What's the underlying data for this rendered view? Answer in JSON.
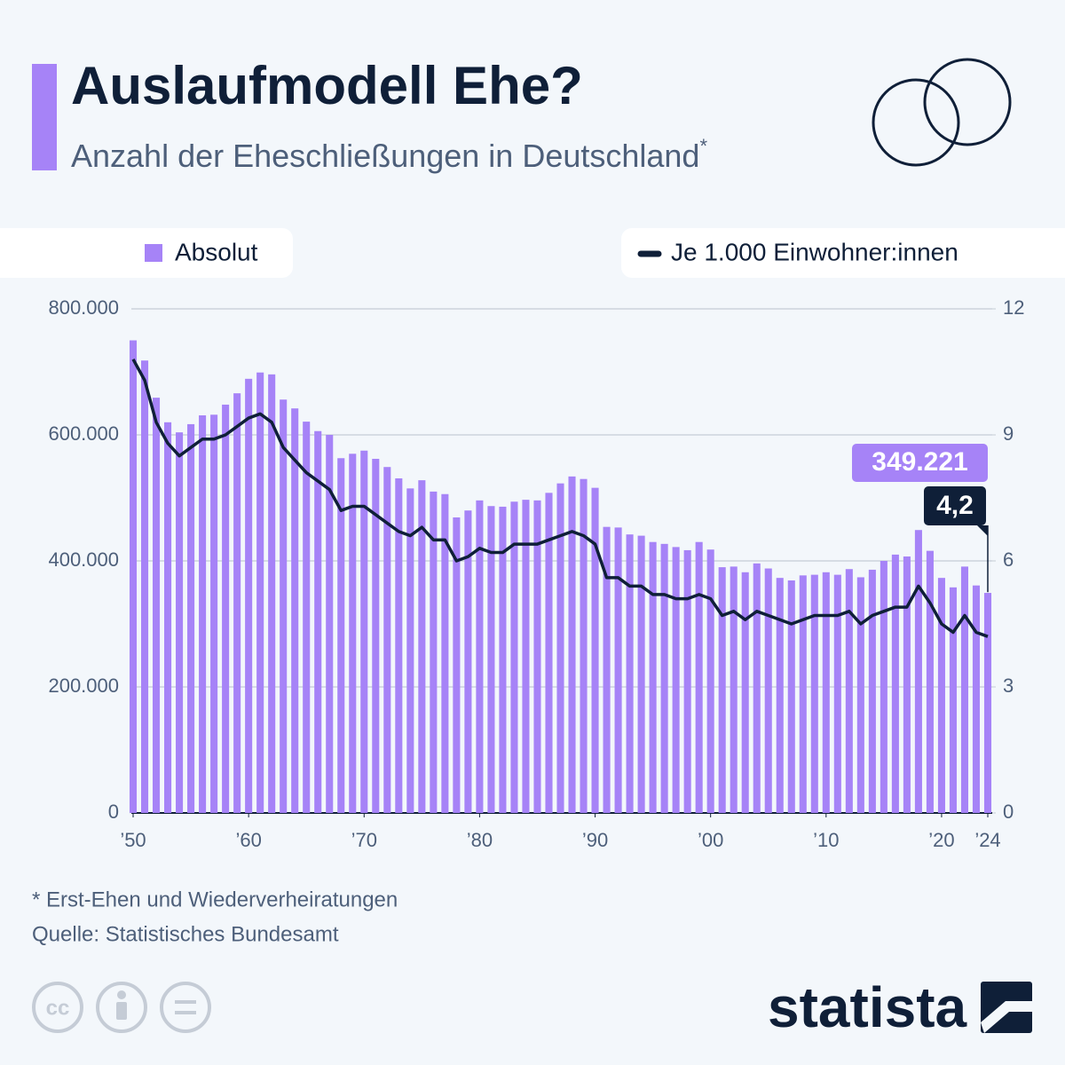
{
  "header": {
    "title": "Auslaufmodell Ehe?",
    "subtitle": "Anzahl der Eheschließungen in Deutschland",
    "subtitle_note": "*"
  },
  "chart_data": {
    "type": "bar",
    "x": [
      1950,
      1951,
      1952,
      1953,
      1954,
      1955,
      1956,
      1957,
      1958,
      1959,
      1960,
      1961,
      1962,
      1963,
      1964,
      1965,
      1966,
      1967,
      1968,
      1969,
      1970,
      1971,
      1972,
      1973,
      1974,
      1975,
      1976,
      1977,
      1978,
      1979,
      1980,
      1981,
      1982,
      1983,
      1984,
      1985,
      1986,
      1987,
      1988,
      1989,
      1990,
      1991,
      1992,
      1993,
      1994,
      1995,
      1996,
      1997,
      1998,
      1999,
      2000,
      2001,
      2002,
      2003,
      2004,
      2005,
      2006,
      2007,
      2008,
      2009,
      2010,
      2011,
      2012,
      2013,
      2014,
      2015,
      2016,
      2017,
      2018,
      2019,
      2020,
      2021,
      2022,
      2023,
      2024
    ],
    "xlim": [
      1949.5,
      2024.5
    ],
    "xticks": [
      {
        "value": 1950,
        "label": "’50"
      },
      {
        "value": 1960,
        "label": "’60"
      },
      {
        "value": 1970,
        "label": "’70"
      },
      {
        "value": 1980,
        "label": "’80"
      },
      {
        "value": 1990,
        "label": "’90"
      },
      {
        "value": 2000,
        "label": "’00"
      },
      {
        "value": 2010,
        "label": "’10"
      },
      {
        "value": 2020,
        "label": "’20"
      },
      {
        "value": 2024,
        "label": "’24"
      }
    ],
    "ylim": [
      0,
      800000
    ],
    "yticks": [
      0,
      {
        "value": 200000,
        "label": "200.000"
      },
      {
        "value": 400000,
        "label": "400.000"
      },
      {
        "value": 600000,
        "label": "600.000"
      },
      {
        "value": 800000,
        "label": "800.000"
      }
    ],
    "y2lim": [
      0,
      12
    ],
    "y2ticks": [
      0,
      3,
      6,
      9,
      12
    ],
    "grid": true,
    "series": [
      {
        "name": "Absolut",
        "type": "bar",
        "color": "#a683f7",
        "values": [
          750000,
          718000,
          659000,
          620000,
          604000,
          617000,
          631000,
          632000,
          648000,
          666000,
          689000,
          699000,
          696000,
          656000,
          642000,
          621000,
          606000,
          600000,
          563000,
          570000,
          575000,
          562000,
          549000,
          531000,
          515000,
          528000,
          510000,
          506000,
          469000,
          480000,
          496000,
          487000,
          486000,
          494000,
          497000,
          496000,
          508000,
          523000,
          534000,
          530000,
          516000,
          454000,
          453000,
          442000,
          440000,
          430000,
          427000,
          422000,
          417000,
          430000,
          418000,
          390000,
          391000,
          382000,
          396000,
          388000,
          373000,
          369000,
          377000,
          378000,
          382000,
          378000,
          387000,
          374000,
          386000,
          400000,
          410000,
          407000,
          449000,
          416000,
          373000,
          358000,
          391000,
          361000,
          349221
        ],
        "value_labels": [
          null,
          null,
          null,
          null,
          null,
          null,
          null,
          null,
          null,
          null,
          null,
          null,
          null,
          null,
          null,
          null,
          null,
          null,
          null,
          null,
          null,
          null,
          null,
          null,
          null,
          null,
          null,
          null,
          null,
          null,
          null,
          null,
          null,
          null,
          null,
          null,
          null,
          null,
          null,
          null,
          null,
          null,
          null,
          null,
          null,
          null,
          null,
          null,
          null,
          null,
          null,
          null,
          null,
          null,
          null,
          null,
          null,
          null,
          null,
          null,
          null,
          null,
          null,
          null,
          null,
          null,
          null,
          null,
          null,
          null,
          null,
          null,
          null,
          null,
          "349.221"
        ]
      },
      {
        "name": "Je 1.000 Einwohner:innen",
        "type": "line",
        "axis": "y2",
        "color": "#0f1f38",
        "values": [
          10.8,
          10.3,
          9.3,
          8.8,
          8.5,
          8.7,
          8.9,
          8.9,
          9.0,
          9.2,
          9.4,
          9.5,
          9.3,
          8.7,
          8.4,
          8.1,
          7.9,
          7.7,
          7.2,
          7.3,
          7.3,
          7.1,
          6.9,
          6.7,
          6.6,
          6.8,
          6.5,
          6.5,
          6.0,
          6.1,
          6.3,
          6.2,
          6.2,
          6.4,
          6.4,
          6.4,
          6.5,
          6.6,
          6.7,
          6.6,
          6.4,
          5.6,
          5.6,
          5.4,
          5.4,
          5.2,
          5.2,
          5.1,
          5.1,
          5.2,
          5.1,
          4.7,
          4.8,
          4.6,
          4.8,
          4.7,
          4.6,
          4.5,
          4.6,
          4.7,
          4.7,
          4.7,
          4.8,
          4.5,
          4.7,
          4.8,
          4.9,
          4.9,
          5.4,
          5.0,
          4.5,
          4.3,
          4.7,
          4.3,
          4.2
        ],
        "value_labels": [
          null,
          null,
          null,
          null,
          null,
          null,
          null,
          null,
          null,
          null,
          null,
          null,
          null,
          null,
          null,
          null,
          null,
          null,
          null,
          null,
          null,
          null,
          null,
          null,
          null,
          null,
          null,
          null,
          null,
          null,
          null,
          null,
          null,
          null,
          null,
          null,
          null,
          null,
          null,
          null,
          null,
          null,
          null,
          null,
          null,
          null,
          null,
          null,
          null,
          null,
          null,
          null,
          null,
          null,
          null,
          null,
          null,
          null,
          null,
          null,
          null,
          null,
          null,
          null,
          null,
          null,
          null,
          null,
          null,
          null,
          null,
          null,
          null,
          null,
          "4,2"
        ]
      }
    ]
  },
  "footer": {
    "note": "* Erst-Ehen und Wiederverheiratungen",
    "source": "Quelle: Statistisches Bundesamt",
    "license": "cc",
    "brand": "statista"
  }
}
